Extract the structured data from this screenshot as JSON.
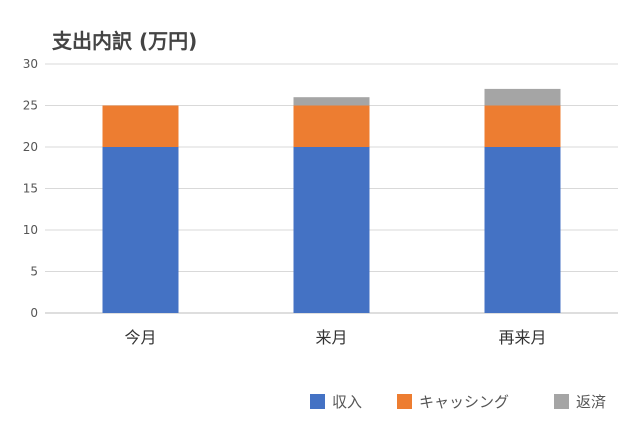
{
  "chart_data": {
    "type": "bar",
    "stacked": true,
    "title": "支出内訳 (万円)",
    "categories": [
      "今月",
      "来月",
      "再来月"
    ],
    "series": [
      {
        "name": "収入",
        "values": [
          20,
          20,
          20
        ],
        "color": "#4472C4"
      },
      {
        "name": "キャッシング",
        "values": [
          5,
          5,
          5
        ],
        "color": "#ED7D31"
      },
      {
        "name": "返済",
        "values": [
          0,
          1,
          2
        ],
        "color": "#A5A5A5"
      }
    ],
    "ylim": [
      0,
      30
    ],
    "yticks": [
      0,
      5,
      10,
      15,
      20,
      25,
      30
    ],
    "grid": true,
    "legend_position": "bottom-right"
  }
}
